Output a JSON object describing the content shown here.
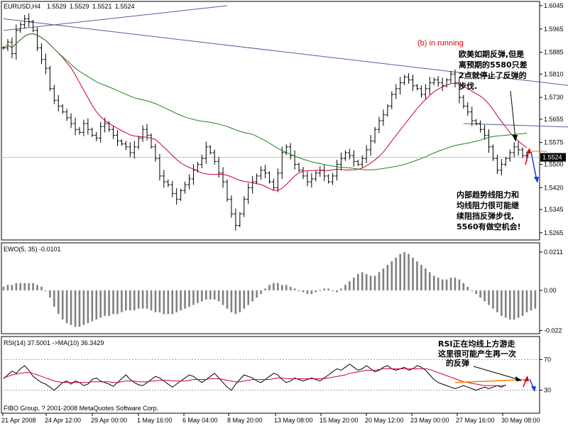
{
  "chart_data": [
    {
      "type": "candlestick",
      "panel": "main",
      "title": "EURUSD,H4",
      "ohlc_header": [
        "1.5529",
        "1.5529",
        "1.5521",
        "1.5524"
      ],
      "ylim": [
        1.5245,
        1.6045
      ],
      "y_ticks": [
        "1.6045",
        "1.5965",
        "1.5885",
        "1.5810",
        "1.5730",
        "1.5655",
        "1.5575",
        "1.5500",
        "1.5420",
        "1.5345",
        "1.5265"
      ],
      "current_price_label": "1.5524",
      "current_price": 1.5524,
      "series_close": [
        1.59,
        1.592,
        1.588,
        1.596,
        1.598,
        1.6,
        1.599,
        1.596,
        1.59,
        1.586,
        1.583,
        1.576,
        1.572,
        1.57,
        1.568,
        1.566,
        1.564,
        1.562,
        1.561,
        1.564,
        1.562,
        1.56,
        1.559,
        1.563,
        1.564,
        1.562,
        1.56,
        1.558,
        1.557,
        1.556,
        1.554,
        1.556,
        1.559,
        1.562,
        1.56,
        1.556,
        1.552,
        1.546,
        1.544,
        1.543,
        1.54,
        1.538,
        1.541,
        1.543,
        1.545,
        1.548,
        1.55,
        1.552,
        1.556,
        1.554,
        1.551,
        1.547,
        1.544,
        1.538,
        1.533,
        1.529,
        1.533,
        1.538,
        1.542,
        1.544,
        1.546,
        1.548,
        1.547,
        1.544,
        1.542,
        1.547,
        1.554,
        1.556,
        1.553,
        1.55,
        1.548,
        1.546,
        1.544,
        1.545,
        1.547,
        1.548,
        1.546,
        1.544,
        1.546,
        1.55,
        1.552,
        1.554,
        1.553,
        1.551,
        1.55,
        1.552,
        1.555,
        1.558,
        1.562,
        1.565,
        1.567,
        1.57,
        1.574,
        1.576,
        1.578,
        1.58,
        1.579,
        1.577,
        1.576,
        1.574,
        1.576,
        1.578,
        1.579,
        1.578,
        1.577,
        1.579,
        1.581,
        1.578,
        1.573,
        1.57,
        1.568,
        1.565,
        1.564,
        1.562,
        1.56,
        1.556,
        1.552,
        1.548,
        1.55,
        1.552,
        1.554,
        1.556,
        1.555,
        1.553,
        1.5524
      ],
      "moving_averages": [
        {
          "color": "#cc0033",
          "period": 14
        },
        {
          "color": "#208020",
          "period": 60
        }
      ],
      "trendlines": [
        {
          "color": "#5a5aa0",
          "from": [
            0,
            1.596
          ],
          "to": [
            53,
            1.6045
          ]
        },
        {
          "color": "#5a5aa0",
          "from": [
            0,
            1.6
          ],
          "to": [
            152,
            1.574
          ]
        },
        {
          "color": "#5a5aa0",
          "from": [
            109,
            1.564
          ],
          "to": [
            151,
            1.562
          ]
        }
      ],
      "annotations": [
        {
          "text": "(b) in running",
          "color": "#e00000"
        },
        {
          "lines": [
            "欧美如期反弹,但是",
            "离预期的5580只差",
            "2点就停止了反弹的",
            "步伐."
          ]
        },
        {
          "lines": [
            "内部趋势线阻力和",
            "均线阻力很可能继",
            "续阻挡反弹步伐,",
            "5560有做空机会!"
          ]
        }
      ]
    },
    {
      "type": "bar",
      "panel": "ewo",
      "title": "EWO(5, 35) -0.0101",
      "ylim": [
        -0.023,
        0.023
      ],
      "y_ticks": [
        "0.0211",
        "0.00",
        "-0.022"
      ],
      "values": [
        0.002,
        0.003,
        0.003,
        0.004,
        0.004,
        0.004,
        0.004,
        0.004,
        0.003,
        0.002,
        0.0,
        -0.004,
        -0.009,
        -0.013,
        -0.016,
        -0.018,
        -0.019,
        -0.02,
        -0.02,
        -0.019,
        -0.018,
        -0.017,
        -0.016,
        -0.015,
        -0.014,
        -0.014,
        -0.013,
        -0.013,
        -0.012,
        -0.011,
        -0.011,
        -0.011,
        -0.01,
        -0.01,
        -0.01,
        -0.011,
        -0.012,
        -0.012,
        -0.013,
        -0.013,
        -0.013,
        -0.012,
        -0.011,
        -0.01,
        -0.009,
        -0.008,
        -0.007,
        -0.006,
        -0.005,
        -0.005,
        -0.005,
        -0.006,
        -0.008,
        -0.01,
        -0.012,
        -0.013,
        -0.012,
        -0.01,
        -0.008,
        -0.006,
        -0.004,
        -0.002,
        0.001,
        0.003,
        0.004,
        0.004,
        0.003,
        0.003,
        0.002,
        0.001,
        0.0,
        -0.001,
        -0.002,
        -0.002,
        -0.001,
        0.0,
        0.001,
        0.001,
        0.0,
        -0.001,
        0.001,
        0.003,
        0.005,
        0.007,
        0.009,
        0.01,
        0.009,
        0.008,
        0.008,
        0.01,
        0.012,
        0.014,
        0.016,
        0.018,
        0.02,
        0.021,
        0.02,
        0.018,
        0.016,
        0.014,
        0.012,
        0.01,
        0.008,
        0.007,
        0.006,
        0.006,
        0.007,
        0.007,
        0.006,
        0.004,
        0.002,
        0.0,
        -0.002,
        -0.004,
        -0.006,
        -0.008,
        -0.01,
        -0.012,
        -0.014,
        -0.015,
        -0.016,
        -0.016,
        -0.015,
        -0.014,
        -0.012,
        -0.011,
        -0.01
      ]
    },
    {
      "type": "line",
      "panel": "rsi",
      "title": "RSI(14) 37.5001 ->MA(10) 36.3429",
      "ylim": [
        0,
        100
      ],
      "y_ticks": [
        "70",
        "30"
      ],
      "series": [
        {
          "color": "#000000",
          "values": [
            45,
            50,
            55,
            52,
            58,
            62,
            56,
            48,
            44,
            40,
            38,
            34,
            30,
            35,
            40,
            42,
            38,
            42,
            40,
            36,
            38,
            44,
            46,
            42,
            40,
            38,
            35,
            40,
            45,
            50,
            44,
            40,
            37,
            36,
            40,
            44,
            48,
            46,
            42,
            38,
            34,
            38,
            42,
            46,
            50,
            48,
            44,
            40,
            44,
            48,
            52,
            46,
            40,
            34,
            30,
            38,
            44,
            50,
            48,
            46,
            42,
            40,
            44,
            48,
            52,
            50,
            44,
            40,
            42,
            46,
            44,
            42,
            44,
            46,
            44,
            42,
            46,
            50,
            54,
            58,
            56,
            60,
            64,
            60,
            56,
            58,
            62,
            58,
            54,
            56,
            60,
            62,
            58,
            56,
            58,
            60,
            56,
            58,
            62,
            60,
            56,
            50,
            44,
            40,
            38,
            36,
            34,
            32,
            34,
            36,
            34,
            32,
            30,
            32,
            34,
            32,
            34,
            36,
            34,
            37
          ]
        },
        {
          "color": "#cc0033",
          "values": [
            46,
            48,
            50,
            51,
            52,
            53,
            53,
            52,
            50,
            48,
            46,
            44,
            42,
            41,
            40,
            40,
            40,
            40,
            40,
            40,
            40,
            41,
            41,
            41,
            41,
            41,
            40,
            40,
            41,
            42,
            42,
            42,
            41,
            41,
            41,
            42,
            42,
            43,
            43,
            43,
            42,
            42,
            42,
            42,
            43,
            44,
            44,
            44,
            44,
            45,
            45,
            45,
            44,
            43,
            42,
            41,
            41,
            42,
            43,
            44,
            44,
            44,
            44,
            44,
            45,
            46,
            46,
            45,
            45,
            45,
            45,
            45,
            45,
            45,
            45,
            45,
            45,
            46,
            47,
            48,
            49,
            50,
            52,
            53,
            54,
            55,
            56,
            56,
            56,
            57,
            58,
            58,
            58,
            58,
            58,
            58,
            58,
            58,
            58,
            58,
            58,
            57,
            55,
            53,
            51,
            49,
            47,
            45,
            43,
            41,
            40,
            39,
            38,
            37,
            36,
            36,
            36,
            36,
            36,
            36
          ]
        }
      ],
      "trendlines": [
        {
          "color": "#ff8000",
          "from": [
            107,
            40
          ],
          "to": [
            124,
            44
          ]
        }
      ],
      "annotations": [
        {
          "lines": [
            "RSI正在均线上方游走",
            "这里很可能产生再一次",
            "的反弹"
          ]
        }
      ]
    }
  ],
  "x_axis": {
    "labels": [
      "21 Apr 2008",
      "24 Apr 12:00",
      "29 Apr 00:00",
      "1 May 16:00",
      "6 May 04:00",
      "8 May 20:00",
      "13 May 08:00",
      "15 May 20:00",
      "20 May 12:00",
      "23 May 00:00",
      "27 May 16:00",
      "30 May 08:00"
    ]
  },
  "footer": "FIBO Group, ? 2001-2008 MetaQuotes Software Corp."
}
